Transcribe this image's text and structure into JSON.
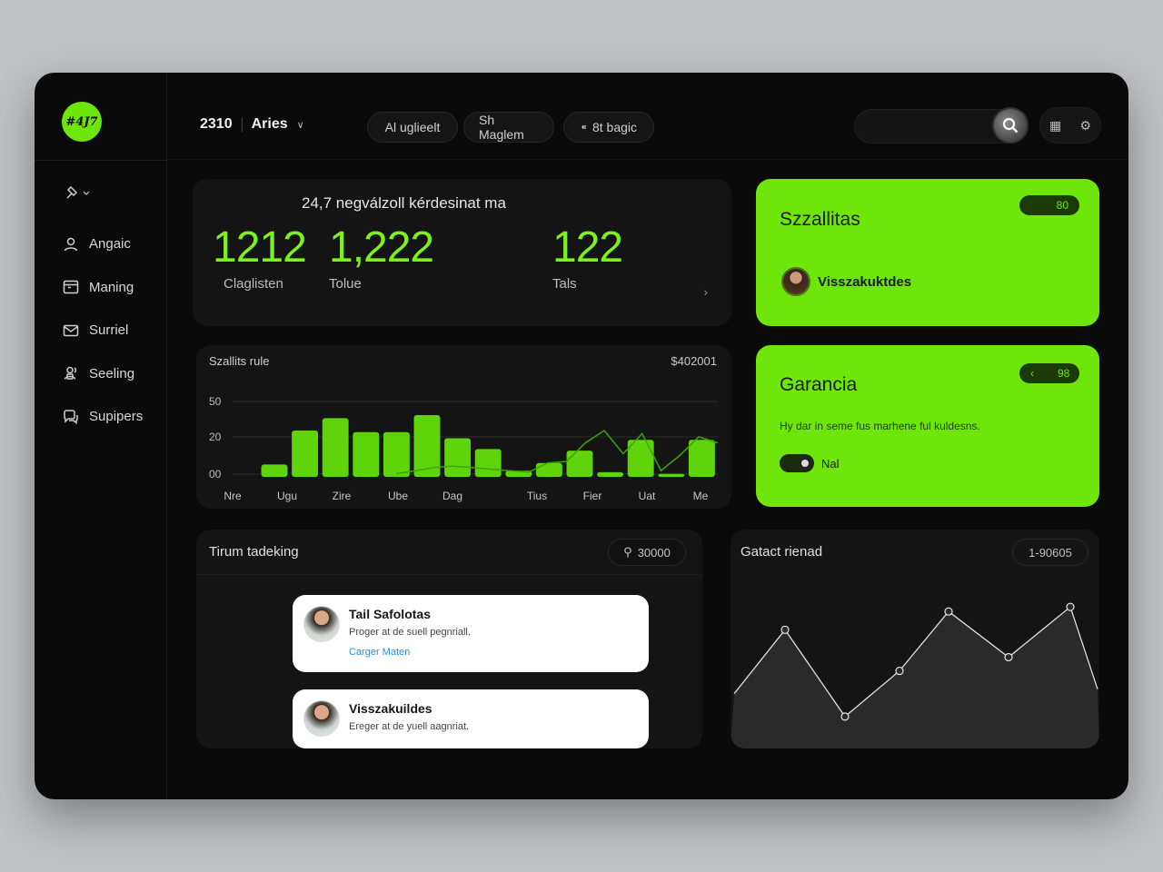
{
  "app": {
    "logo_text": "#4J7"
  },
  "sidebar": {
    "items": [
      {
        "label": "Angaic",
        "icon": "user-icon"
      },
      {
        "label": "Maning",
        "icon": "calendar-icon"
      },
      {
        "label": "Surriel",
        "icon": "mail-icon"
      },
      {
        "label": "Seeling",
        "icon": "users-icon"
      },
      {
        "label": "Supipers",
        "icon": "chat-icon"
      }
    ]
  },
  "header": {
    "number": "2310",
    "workspace": "Aries",
    "pills": [
      "Al uglieelt",
      "Sh Maglem",
      "8t bagic"
    ]
  },
  "stats": {
    "title": "24,7 negválzoll kérdesinat ma",
    "items": [
      {
        "value": "1212",
        "label": "Claglisten"
      },
      {
        "value": "1,222",
        "label": "Tolue"
      },
      {
        "value": "122",
        "label": "Tals"
      }
    ]
  },
  "shipping_card": {
    "title": "Szzallitas",
    "badge": "80",
    "user": "Visszakuktdes"
  },
  "guarantee_card": {
    "title": "Garancia",
    "badge": "98",
    "description": "Hy dar in seme fus marhene ful kuldesns.",
    "toggle_label": "Nal"
  },
  "bar_chart": {
    "title": "Szallits rule",
    "value": "$402001"
  },
  "chart_data": [
    {
      "type": "bar",
      "title": "Szallits rule",
      "y_ticks": [
        "50",
        "20",
        "00"
      ],
      "x_tick_labels": [
        "Nre",
        "Ugu",
        "Zire",
        "Ube",
        "Dag",
        "Tius",
        "Fier",
        "Uat",
        "Me"
      ],
      "values": [
        8,
        30,
        38,
        29,
        29,
        40,
        25,
        18,
        4,
        9,
        17,
        3,
        24,
        2,
        24
      ],
      "line_values": [
        2,
        4,
        6,
        7,
        6,
        5,
        4,
        3,
        9,
        10,
        22,
        30,
        15,
        28,
        4,
        14,
        26,
        22
      ],
      "ylim": [
        0,
        50
      ],
      "grid": true
    },
    {
      "type": "area",
      "values": [
        20,
        48,
        10,
        30,
        56,
        36,
        58,
        22
      ],
      "ylim": [
        0,
        70
      ]
    }
  ],
  "team": {
    "title": "Tirum tadeking",
    "search_value": "30000",
    "messages": [
      {
        "name": "Tail Safolotas",
        "text": "Proger at de suell pegnriall.",
        "link": "Carger Maten"
      },
      {
        "name": "Visszakuildes",
        "text": "Ereger at de yuell aagnriat."
      }
    ]
  },
  "area_card": {
    "title": "Gatact rienad",
    "badge": "1-90605"
  }
}
